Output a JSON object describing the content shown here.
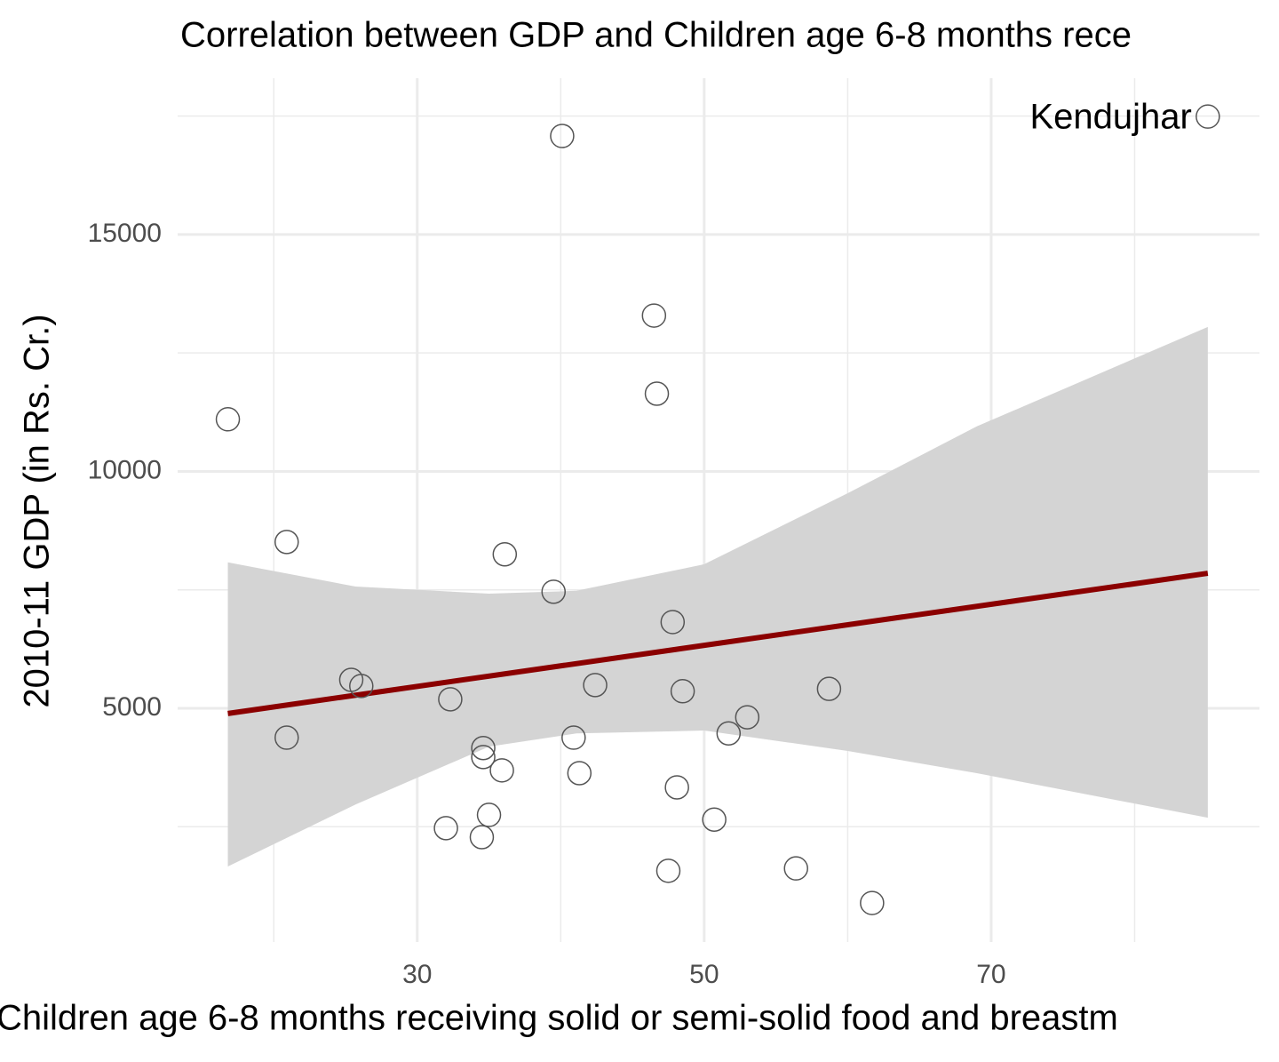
{
  "chart_data": {
    "type": "scatter",
    "title": "Correlation between GDP and Children age 6-8 months rece",
    "x_label": "Children age 6-8 months receiving solid or semi-solid food and breastm",
    "y_label": "2010-11 GDP (in Rs. Cr.)",
    "x": [
      16.8,
      20.9,
      20.9,
      25.4,
      26.1,
      32.3,
      32.0,
      34.5,
      34.6,
      34.6,
      35.0,
      35.9,
      36.1,
      39.5,
      40.1,
      40.9,
      41.3,
      42.4,
      46.5,
      46.7,
      47.5,
      47.8,
      48.1,
      48.5,
      50.7,
      51.7,
      53.0,
      56.4,
      58.7,
      61.7,
      85.1
    ],
    "values": [
      11100,
      8510,
      4380,
      5600,
      5470,
      5190,
      2470,
      2280,
      4160,
      3970,
      2750,
      3690,
      8250,
      7460,
      17080,
      4380,
      3630,
      5490,
      13290,
      11640,
      1570,
      6820,
      3330,
      5360,
      2650,
      4470,
      4810,
      1620,
      5410,
      890,
      17490
    ],
    "point_color": "#555555",
    "annotation": {
      "text": "Kendujhar",
      "x": 85.1,
      "y": 17490
    },
    "fit": {
      "color": "#8b0000",
      "x": [
        16.8,
        85.1
      ],
      "y": [
        4890,
        7850
      ]
    },
    "band": {
      "color": "#d4d4d4",
      "x": [
        16.8,
        25.7,
        35.0,
        41.1,
        50,
        60,
        69,
        85.1
      ],
      "upper": [
        8080,
        7570,
        7420,
        7480,
        8040,
        9540,
        10950,
        13050
      ],
      "lower": [
        1660,
        2970,
        4190,
        4470,
        4530,
        4100,
        3630,
        2690
      ]
    },
    "xlim": [
      13.3,
      88.7
    ],
    "ylim": [
      66,
      18300
    ],
    "xticks": [
      30,
      50,
      70
    ],
    "yticks": [
      5000,
      10000,
      15000
    ],
    "x_minor": [
      20,
      40,
      60,
      80
    ],
    "y_minor": [
      2500,
      7500,
      12500,
      17500
    ],
    "grid": true
  }
}
